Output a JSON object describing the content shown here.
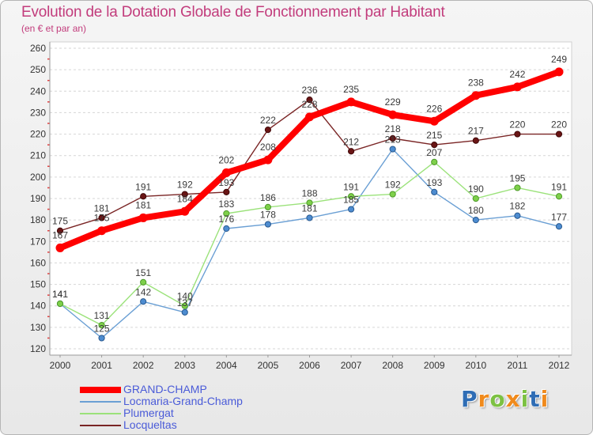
{
  "chart_data": {
    "type": "line",
    "title": "Evolution de la Dotation Globale de Fonctionnement par Habitant",
    "subtitle": "(en € et par an)",
    "categories": [
      "2000",
      "2001",
      "2002",
      "2003",
      "2004",
      "2005",
      "2006",
      "2007",
      "2008",
      "2009",
      "2010",
      "2011",
      "2012"
    ],
    "ylim": [
      120,
      260
    ],
    "yticks": [
      120,
      130,
      140,
      150,
      160,
      170,
      180,
      190,
      200,
      210,
      220,
      230,
      240,
      250,
      260
    ],
    "grid": true,
    "legend_position": "bottom-left",
    "series": [
      {
        "name": "GRAND-CHAMP",
        "color": "#ff0000",
        "marker_color": "#ff0000",
        "marker_stroke": "#e00000",
        "values": [
          167,
          175,
          181,
          184,
          202,
          208,
          228,
          235,
          229,
          226,
          238,
          242,
          249
        ]
      },
      {
        "name": "Locmaria-Grand-Champ",
        "color": "#6a9fd4",
        "marker_color": "#4d8cd0",
        "marker_stroke": "#2a5a90",
        "values": [
          141,
          125,
          142,
          137,
          176,
          178,
          181,
          185,
          213,
          193,
          180,
          182,
          177
        ]
      },
      {
        "name": "Plumergat",
        "color": "#9be27a",
        "marker_color": "#7ed04a",
        "marker_stroke": "#4e9a2a",
        "values": [
          141,
          131,
          151,
          140,
          183,
          186,
          188,
          191,
          192,
          207,
          190,
          195,
          191
        ]
      },
      {
        "name": "Locqueltas",
        "color": "#7a2525",
        "marker_color": "#6a1515",
        "marker_stroke": "#400808",
        "values": [
          175,
          181,
          191,
          192,
          193,
          222,
          236,
          212,
          218,
          215,
          217,
          220,
          220
        ]
      }
    ]
  },
  "logo": "Proxiti",
  "logo_colors": [
    "#2f6db5",
    "#f08a1c",
    "#7cc142",
    "#f08a1c",
    "#7cc142",
    "#2f6db5",
    "#f08a1c"
  ],
  "colors": {
    "title": "#c23c7c",
    "legend_text": "#4a5bd8",
    "minor_tick": "#e04040"
  }
}
